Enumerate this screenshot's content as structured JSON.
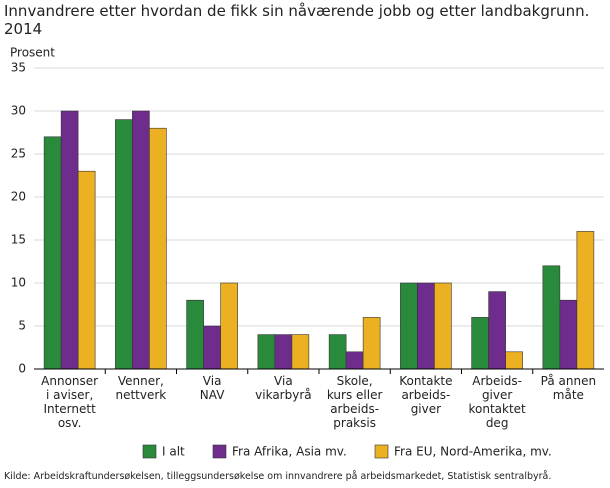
{
  "chart_data": {
    "type": "bar",
    "title": "Innvandrere etter hvordan de fikk sin nåværende jobb og etter landbakgrunn. 2014",
    "y_label": "Prosent",
    "source": "Kilde: Arbeidskraftundersøkelsen, tilleggsundersøkelse om innvandrere på arbeidsmarkedet, Statistisk sentralbyrå.",
    "categories": [
      "Annonser\ni aviser,\nInternett\nosv.",
      "Venner,\nnettverk",
      "Via\nNAV",
      "Via\nvikarbyrå",
      "Skole,\nkurs eller\narbeids-\npraksis",
      "Kontakte\narbeids-\ngiver",
      "Arbeids-\ngiver\nkontaktet\ndeg",
      "På annen\nmåte"
    ],
    "series": [
      {
        "name": "I alt",
        "color": "#2a8a3c",
        "values": [
          27,
          29,
          8,
          4,
          4,
          10,
          6,
          12
        ]
      },
      {
        "name": "Fra Afrika, Asia mv.",
        "color": "#6e2d8c",
        "values": [
          30,
          30,
          5,
          4,
          2,
          10,
          9,
          8
        ]
      },
      {
        "name": "Fra EU, Nord-Amerika, mv.",
        "color": "#ebb123",
        "values": [
          23,
          28,
          10,
          4,
          6,
          10,
          2,
          16
        ]
      }
    ],
    "ylim": [
      0,
      35
    ],
    "yticks": [
      0,
      5,
      10,
      15,
      20,
      25,
      30,
      35
    ],
    "grid": true
  }
}
